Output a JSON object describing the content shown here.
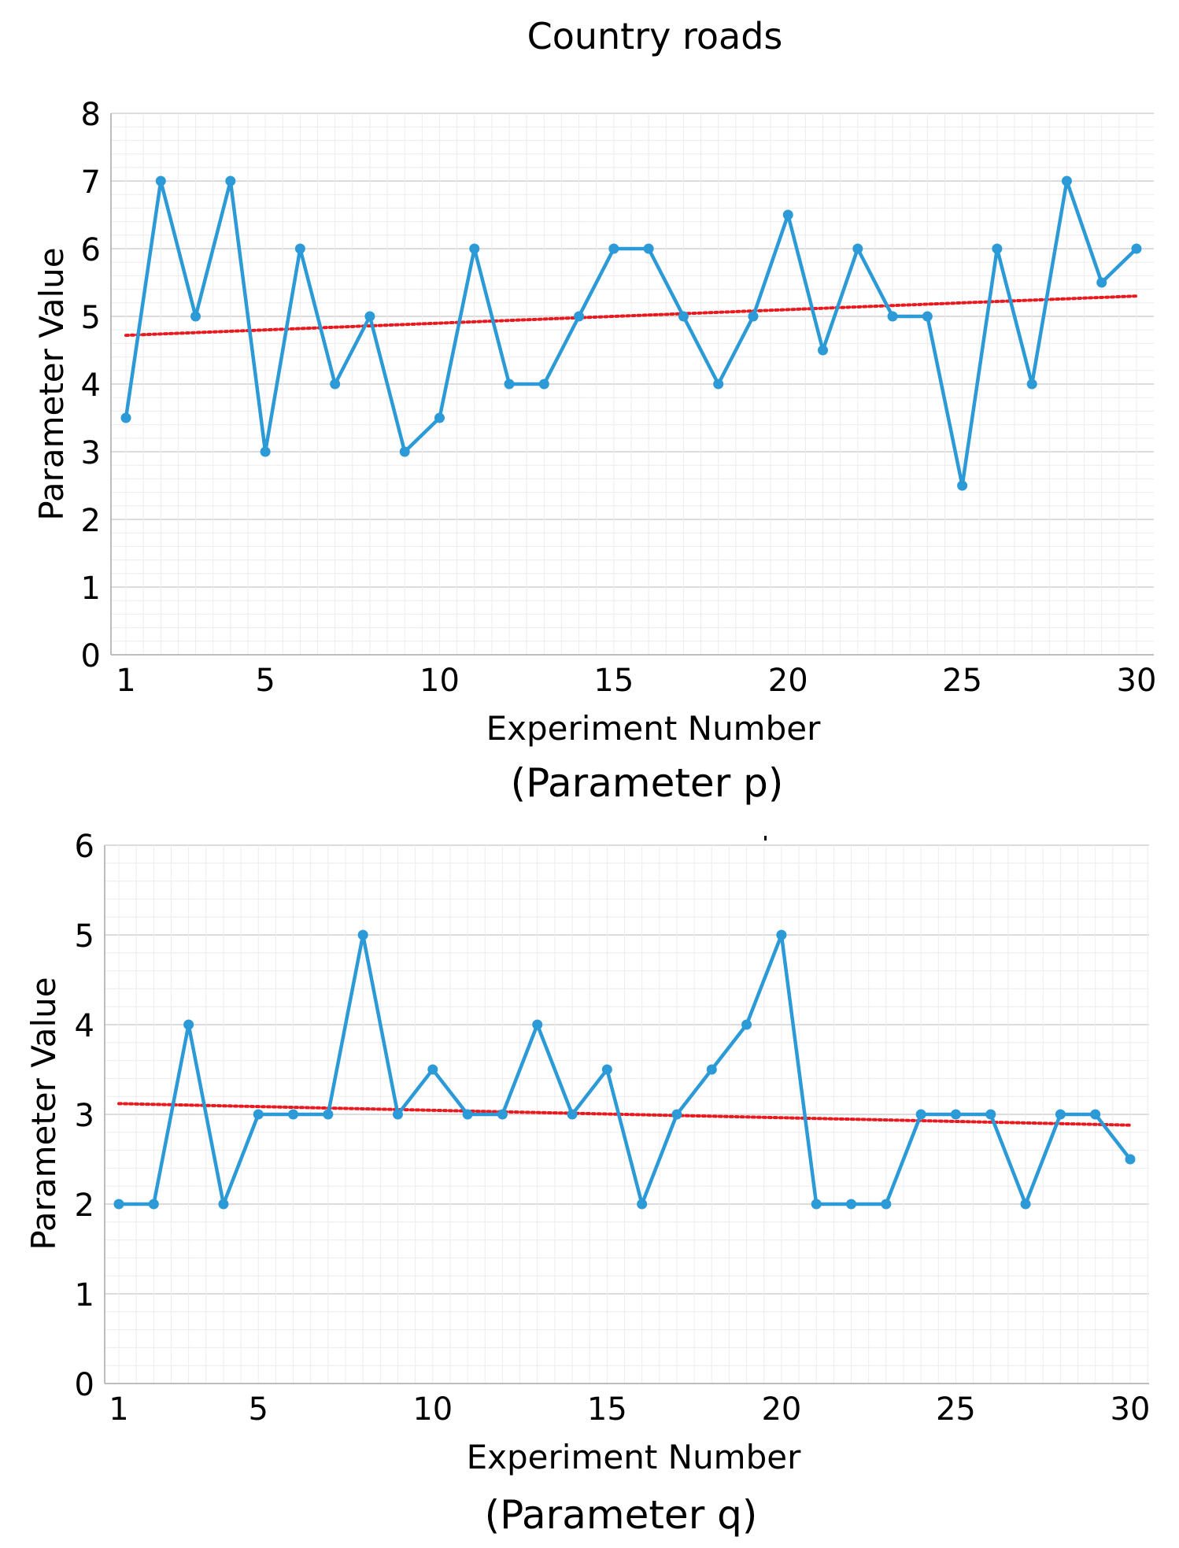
{
  "title": "Country roads",
  "chart_data": [
    {
      "type": "line",
      "caption": "(Parameter  p)",
      "xlabel": "Experiment Number",
      "ylabel": "Parameter Value",
      "xlim": [
        1,
        30
      ],
      "ylim": [
        0,
        8
      ],
      "xticks": [
        1,
        5,
        10,
        15,
        20,
        25,
        30
      ],
      "yticks": [
        0,
        1,
        2,
        3,
        4,
        5,
        6,
        7,
        8
      ],
      "grid": true,
      "x": [
        1,
        2,
        3,
        4,
        5,
        6,
        7,
        8,
        9,
        10,
        11,
        12,
        13,
        14,
        15,
        16,
        17,
        18,
        19,
        20,
        21,
        22,
        23,
        24,
        25,
        26,
        27,
        28,
        29,
        30
      ],
      "series": [
        {
          "name": "Parameter p",
          "color": "#2b9ad6",
          "values": [
            3.5,
            7,
            5,
            7,
            3,
            6,
            4,
            5,
            3,
            3.5,
            6,
            4,
            4,
            5,
            6,
            6,
            5,
            4,
            5,
            6.5,
            4.5,
            6,
            5,
            5,
            2.5,
            6,
            4,
            7,
            5.5,
            6
          ]
        }
      ],
      "trendline": {
        "color": "#e8191f",
        "start": 4.72,
        "end": 5.3
      }
    },
    {
      "type": "line",
      "caption": "(Parameter  q)",
      "xlabel": "Experiment Number",
      "ylabel": "Parameter Value",
      "xlim": [
        1,
        30
      ],
      "ylim": [
        0,
        6
      ],
      "xticks": [
        1,
        5,
        10,
        15,
        20,
        25,
        30
      ],
      "yticks": [
        0,
        1,
        2,
        3,
        4,
        5,
        6
      ],
      "grid": true,
      "x": [
        1,
        2,
        3,
        4,
        5,
        6,
        7,
        8,
        9,
        10,
        11,
        12,
        13,
        14,
        15,
        16,
        17,
        18,
        19,
        20,
        21,
        22,
        23,
        24,
        25,
        26,
        27,
        28,
        29,
        30
      ],
      "series": [
        {
          "name": "Parameter q",
          "color": "#2b9ad6",
          "values": [
            2,
            2,
            4,
            2,
            3,
            3,
            3,
            5,
            3,
            3.5,
            3,
            3,
            4,
            3,
            3.5,
            2,
            3,
            3.5,
            4,
            5,
            2,
            2,
            2,
            3,
            3,
            3,
            2,
            3,
            3,
            2.5
          ]
        }
      ],
      "trendline": {
        "color": "#e8191f",
        "start": 3.12,
        "end": 2.88
      }
    }
  ]
}
